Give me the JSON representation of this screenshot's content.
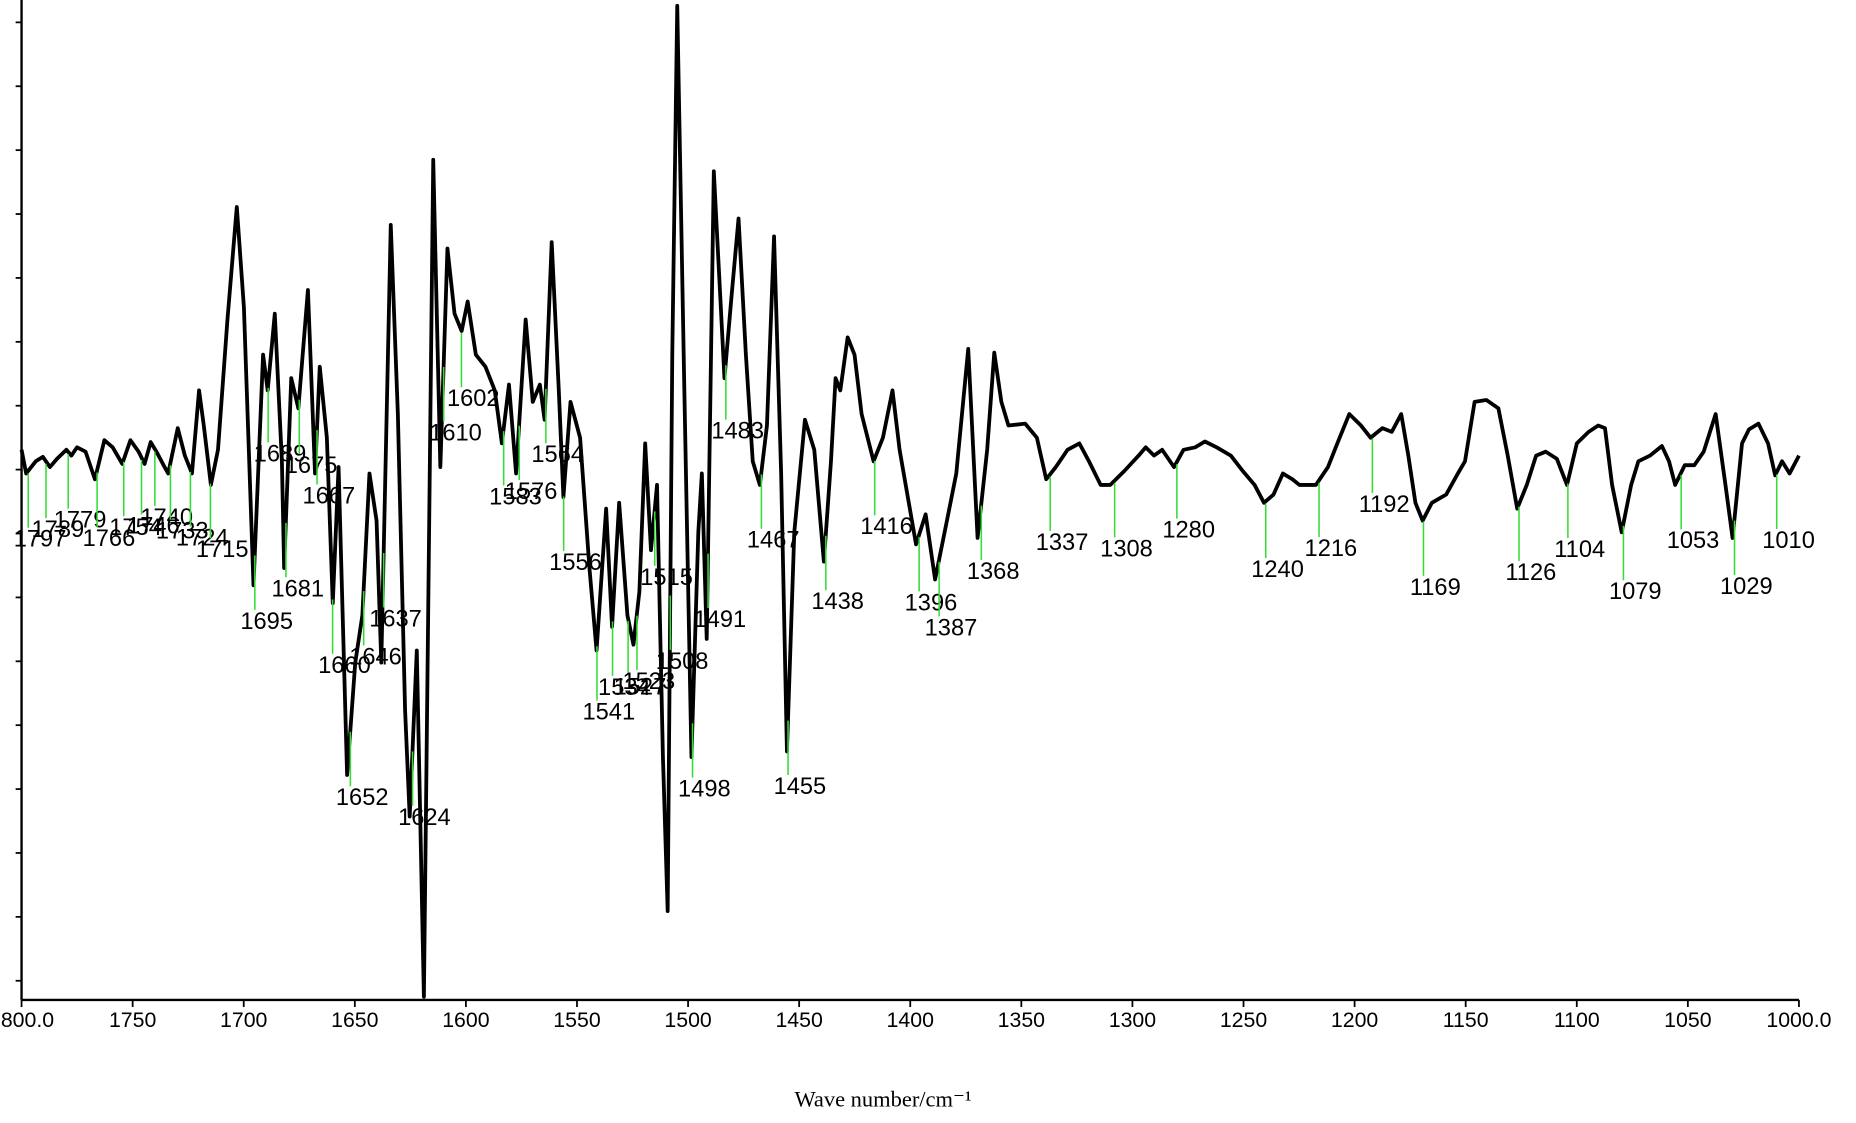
{
  "chart_data": {
    "type": "line",
    "x_label": "Wave number/cm⁻¹",
    "xlim": [
      1800,
      1000
    ],
    "ylim": [
      -0.3,
      15.35
    ],
    "xticks": [
      {
        "value": 1800,
        "label": "1800.0"
      },
      1750,
      1700,
      1650,
      1600,
      1550,
      1500,
      1450,
      1400,
      1350,
      1300,
      1250,
      1200,
      1150,
      1100,
      1050,
      {
        "value": 1000,
        "label": "1000.0"
      }
    ],
    "yticks": [
      0,
      1,
      2,
      3,
      4,
      5,
      6,
      7,
      8,
      9,
      10,
      11,
      12,
      13,
      14,
      15
    ],
    "series": [
      {
        "color": "#000000",
        "x": [
          1800,
          1797.9,
          1793.6,
          1790.4,
          1787.2,
          1784.0,
          1779.8,
          1777.6,
          1775.0,
          1771.2,
          1767.0,
          1762.7,
          1759.0,
          1754.7,
          1751.0,
          1747.3,
          1744.6,
          1741.9,
          1739.3,
          1736.1,
          1734.0,
          1729.7,
          1726.5,
          1723.3,
          1720.1,
          1718.0,
          1714.8,
          1711.6,
          1707.3,
          1703.1,
          1699.9,
          1695.6,
          1691.3,
          1689.2,
          1686.0,
          1682.8,
          1681.8,
          1678.6,
          1675.4,
          1671.1,
          1667.9,
          1665.8,
          1662.6,
          1659.9,
          1657.3,
          1653.5,
          1649.8,
          1646.6,
          1643.4,
          1640.2,
          1638.1,
          1633.8,
          1630.6,
          1627.4,
          1625.3,
          1622.1,
          1618.9,
          1614.7,
          1611.5,
          1608.3,
          1605.1,
          1601.9,
          1599.2,
          1595.5,
          1591.2,
          1587.0,
          1583.8,
          1580.6,
          1577.4,
          1573.1,
          1569.9,
          1566.7,
          1564.6,
          1561.4,
          1558.2,
          1556.1,
          1552.9,
          1548.6,
          1544.4,
          1541.2,
          1536.9,
          1534.2,
          1531.0,
          1527.3,
          1524.6,
          1521.9,
          1519.3,
          1516.7,
          1514.0,
          1511.3,
          1509.2,
          1507.1,
          1504.9,
          1501.7,
          1498.5,
          1495.4,
          1493.8,
          1491.6,
          1488.4,
          1483.6,
          1480.4,
          1477.3,
          1474.0,
          1470.9,
          1467.7,
          1464.5,
          1461.3,
          1458.1,
          1455.5,
          1452.2,
          1447.4,
          1443.2,
          1438.9,
          1435.7,
          1433.6,
          1431.5,
          1428.2,
          1425.1,
          1421.9,
          1416.5,
          1412.3,
          1408.0,
          1404.8,
          1401.6,
          1397.4,
          1393.1,
          1388.8,
          1383.5,
          1379.3,
          1373.9,
          1369.7,
          1365.4,
          1362.2,
          1359.0,
          1355.8,
          1348.3,
          1343.0,
          1338.8,
          1334.5,
          1329.2,
          1323.9,
          1319.6,
          1314.3,
          1310.0,
          1303.6,
          1297.2,
          1294.0,
          1290.3,
          1286.6,
          1281.3,
          1277.0,
          1271.7,
          1267.4,
          1262.1,
          1255.7,
          1250.4,
          1245.0,
          1240.8,
          1236.5,
          1232.3,
          1228.0,
          1224.8,
          1217.4,
          1212.0,
          1207.8,
          1202.4,
          1197.1,
          1192.8,
          1187.5,
          1183.3,
          1179.0,
          1175.8,
          1172.6,
          1169.4,
          1165.2,
          1158.8,
          1153.5,
          1150.3,
          1146.0,
          1140.7,
          1135.3,
          1131.1,
          1126.8,
          1122.5,
          1118.3,
          1114.0,
          1109.0,
          1104.4,
          1100.0,
          1094.7,
          1090.4,
          1087.3,
          1084.1,
          1079.8,
          1075.5,
          1072.3,
          1067.0,
          1061.7,
          1058.5,
          1055.7,
          1051.4,
          1047.1,
          1042.9,
          1037.5,
          1033.1,
          1029.9,
          1025.6,
          1022.5,
          1018.2,
          1013.9,
          1010.7,
          1007.6,
          1004.2,
          1000
        ],
        "values": [
          8.31,
          7.94,
          8.13,
          8.2,
          8.04,
          8.17,
          8.31,
          8.22,
          8.35,
          8.28,
          7.85,
          8.46,
          8.35,
          8.09,
          8.46,
          8.28,
          8.09,
          8.43,
          8.28,
          8.07,
          7.94,
          8.65,
          8.22,
          7.94,
          9.24,
          8.69,
          7.76,
          8.31,
          10.35,
          12.11,
          10.54,
          6.19,
          9.8,
          9.24,
          10.44,
          8.13,
          6.46,
          9.43,
          8.96,
          10.81,
          7.94,
          9.61,
          8.5,
          5.91,
          8.04,
          3.22,
          4.98,
          5.72,
          7.94,
          7.2,
          4.98,
          11.83,
          8.87,
          4.24,
          2.57,
          5.17,
          -0.25,
          12.85,
          8.04,
          11.46,
          10.44,
          10.17,
          10.63,
          9.8,
          9.61,
          9.24,
          8.41,
          9.33,
          7.94,
          10.35,
          9.06,
          9.33,
          8.78,
          11.56,
          9.24,
          7.57,
          9.06,
          8.5,
          6.46,
          5.17,
          7.39,
          5.54,
          7.48,
          5.72,
          5.26,
          6.09,
          8.41,
          6.74,
          7.76,
          3.5,
          1.09,
          9.8,
          15.26,
          9.24,
          3.5,
          7.02,
          7.94,
          5.35,
          12.67,
          9.43,
          10.72,
          11.93,
          9.8,
          8.13,
          7.76,
          8.69,
          11.65,
          7.94,
          3.59,
          7.02,
          8.78,
          8.31,
          6.56,
          8.13,
          9.43,
          9.24,
          10.07,
          9.8,
          8.87,
          8.13,
          8.5,
          9.24,
          8.31,
          7.67,
          6.83,
          7.3,
          6.28,
          7.2,
          7.94,
          9.89,
          6.93,
          8.31,
          9.83,
          9.06,
          8.69,
          8.72,
          8.5,
          7.85,
          8.04,
          8.31,
          8.41,
          8.13,
          7.76,
          7.76,
          7.98,
          8.22,
          8.35,
          8.22,
          8.31,
          8.04,
          8.31,
          8.35,
          8.44,
          8.35,
          8.22,
          7.98,
          7.76,
          7.48,
          7.61,
          7.94,
          7.85,
          7.76,
          7.76,
          8.04,
          8.41,
          8.87,
          8.69,
          8.5,
          8.65,
          8.59,
          8.87,
          8.22,
          7.48,
          7.2,
          7.48,
          7.61,
          7.94,
          8.13,
          9.06,
          9.09,
          8.96,
          8.22,
          7.39,
          7.76,
          8.22,
          8.28,
          8.17,
          7.76,
          8.41,
          8.59,
          8.69,
          8.65,
          7.76,
          7.02,
          7.76,
          8.13,
          8.22,
          8.37,
          8.13,
          7.76,
          8.07,
          8.07,
          8.28,
          8.87,
          7.76,
          6.93,
          8.41,
          8.63,
          8.72,
          8.41,
          7.91,
          8.13,
          7.94,
          8.22
        ]
      }
    ],
    "peaks": [
      1797,
      1789,
      1779,
      1766,
      1754,
      1746,
      1740,
      1733,
      1724,
      1715,
      1695,
      1689,
      1681,
      1675,
      1667,
      1660,
      1652,
      1646,
      1637,
      1624,
      1610,
      1602,
      1583,
      1576,
      1564,
      1556,
      1541,
      1534,
      1527,
      1523,
      1515,
      1508,
      1498,
      1491,
      1483,
      1467,
      1455,
      1438,
      1416,
      1396,
      1387,
      1368,
      1337,
      1308,
      1280,
      1240,
      1216,
      1192,
      1169,
      1126,
      1104,
      1079,
      1053,
      1029,
      1010
    ],
    "peak_color": "#33dd33"
  }
}
